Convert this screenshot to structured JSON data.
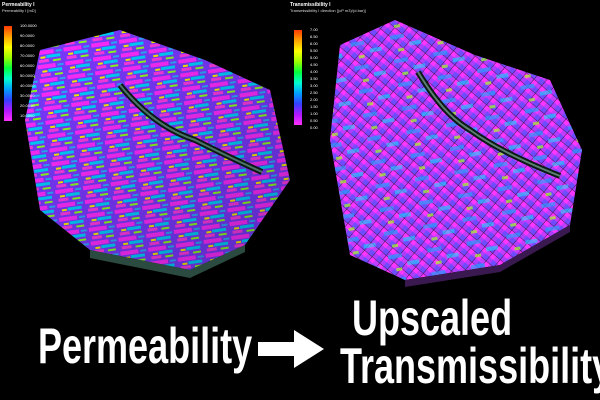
{
  "left": {
    "legend_title": "Permeability I",
    "legend_subtitle": "Permeability I [mD]",
    "ticks": [
      "100.0000",
      "90.0000",
      "80.0000",
      "70.0000",
      "60.0000",
      "50.0000",
      "40.0000",
      "30.0000",
      "20.0000",
      "10.0000"
    ],
    "color_stops": [
      "#ff3a00",
      "#ffa200",
      "#ffff00",
      "#9cff00",
      "#00ff3c",
      "#00ffd0",
      "#00a0ff",
      "#3340ff",
      "#b018ff",
      "#ff30ff"
    ]
  },
  "right": {
    "legend_title": "Transmissibility I",
    "legend_subtitle": "Transmissibility I direction [(cP m3)/(d.bar)]",
    "ticks": [
      "7.00",
      "6.50",
      "6.00",
      "5.50",
      "5.00",
      "4.50",
      "4.00",
      "3.50",
      "3.00",
      "2.50",
      "2.00",
      "1.50",
      "1.00",
      "0.50",
      "0.00"
    ],
    "color_stops": [
      "#ff3a00",
      "#ffa200",
      "#ffff00",
      "#9cff00",
      "#00ff3c",
      "#00ffd0",
      "#00a0ff",
      "#3340ff",
      "#b018ff",
      "#ff30ff"
    ]
  },
  "captions": {
    "permeability": "Permeability",
    "upscaled": "Upscaled",
    "transmissibility": "Transmissibility"
  },
  "icons": {
    "arrow": "right-arrow-icon"
  }
}
